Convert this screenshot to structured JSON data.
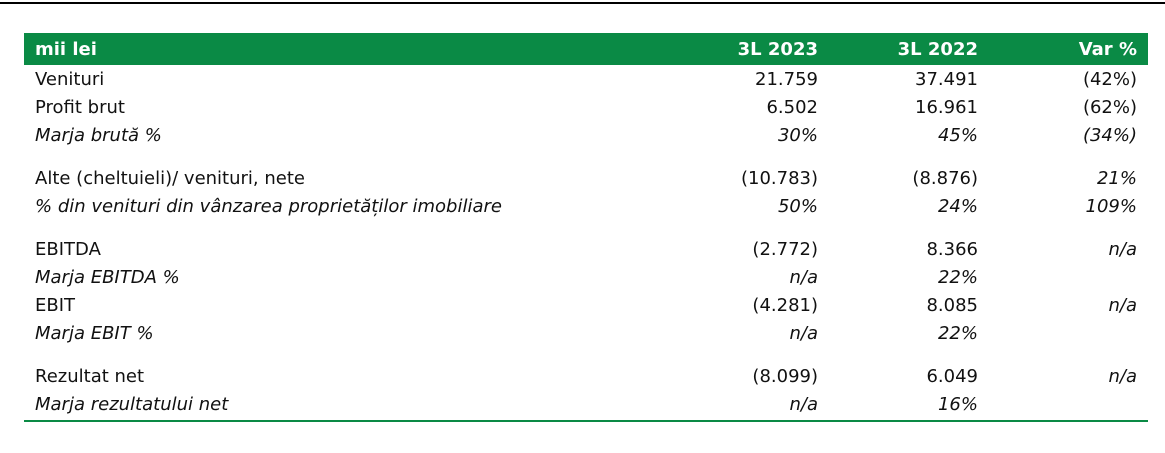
{
  "table": {
    "header": {
      "label": "mii lei",
      "col1": "3L 2023",
      "col2": "3L 2022",
      "col3": "Var %"
    },
    "groups": [
      [
        {
          "label": "Venituri",
          "v1": "21.759",
          "v2": "37.491",
          "v3": "(42%)",
          "italic": false
        },
        {
          "label": "Profit brut",
          "v1": "6.502",
          "v2": "16.961",
          "v3": "(62%)",
          "italic": false
        },
        {
          "label": "Marja brută %",
          "v1": "30%",
          "v2": "45%",
          "v3": "(34%)",
          "italic": true
        }
      ],
      [
        {
          "label": "Alte (cheltuieli)/ venituri, nete",
          "v1": "(10.783)",
          "v2": "(8.876)",
          "v3": "21%",
          "italic": false,
          "v3_italic": true
        },
        {
          "label": "% din venituri din vânzarea proprietăților imobiliare",
          "v1": "50%",
          "v2": "24%",
          "v3": "109%",
          "italic": true
        }
      ],
      [
        {
          "label": "EBITDA",
          "v1": "(2.772)",
          "v2": "8.366",
          "v3": "n/a",
          "italic": false,
          "v3_italic": true
        },
        {
          "label": "Marja EBITDA %",
          "v1": "n/a",
          "v2": "22%",
          "v3": "",
          "italic": true
        },
        {
          "label": "EBIT",
          "v1": "(4.281)",
          "v2": "8.085",
          "v3": "n/a",
          "italic": false,
          "v3_italic": true
        },
        {
          "label": "Marja EBIT %",
          "v1": "n/a",
          "v2": "22%",
          "v3": "",
          "italic": true
        }
      ],
      [
        {
          "label": "Rezultat net",
          "v1": "(8.099)",
          "v2": "6.049",
          "v3": "n/a",
          "italic": false,
          "v3_italic": true
        },
        {
          "label": "Marja rezultatului net",
          "v1": "n/a",
          "v2": "16%",
          "v3": "",
          "italic": true
        }
      ]
    ]
  },
  "colors": {
    "header_bg": "#0a8a45",
    "header_text": "#ffffff",
    "bottom_rule": "#0a8a45",
    "top_rule": "#000000"
  }
}
